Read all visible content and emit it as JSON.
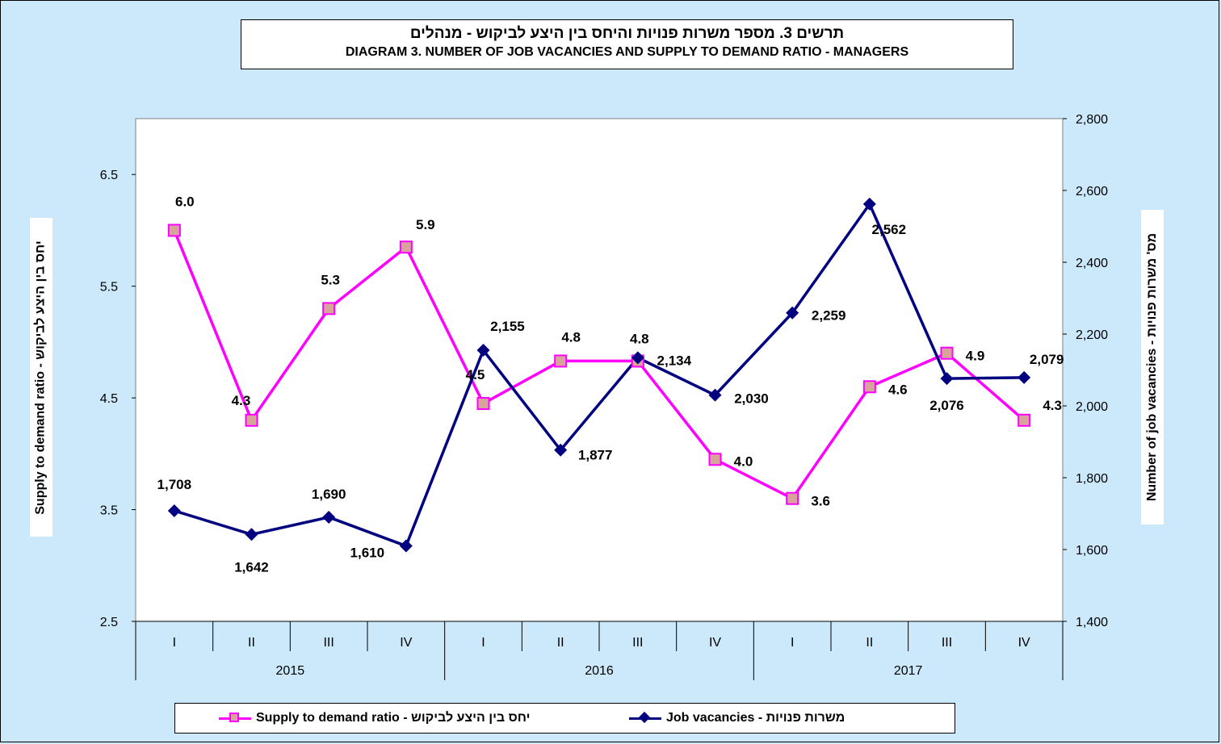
{
  "title": {
    "hebrew": "תרשים 3. מספר משרות פנויות והיחס בין היצע לביקוש - מנהלים",
    "english": "DIAGRAM 3. NUMBER OF JOB VACANCIES AND SUPPLY TO DEMAND RATIO - MANAGERS"
  },
  "colors": {
    "background": "#cce8fb",
    "supply": "#ff00ff",
    "supply_marker_fill": "#d8a39b",
    "jobs": "#000080"
  },
  "legend": {
    "supply": "Supply to demand ratio - יחס בין היצע לביקוש",
    "jobs": "Job vacancies - משרות פנויות"
  },
  "chart_data": {
    "type": "line",
    "categories": [
      "I",
      "II",
      "III",
      "IV",
      "I",
      "II",
      "III",
      "IV",
      "I",
      "II",
      "III",
      "IV"
    ],
    "groups": [
      {
        "label": "2015",
        "span": 4
      },
      {
        "label": "2016",
        "span": 4
      },
      {
        "label": "2017",
        "span": 4
      }
    ],
    "ylabel_left": "Supply to demand ratio - יחס בין היצע לביקוש",
    "ylabel_right": "Number of job vacancies - מס' משרות פנויות",
    "ylim_left": [
      2.5,
      7.0
    ],
    "yticks_left": [
      "2.5",
      "3.5",
      "4.5",
      "5.5",
      "6.5"
    ],
    "yticks_left_values": [
      2.5,
      3.5,
      4.5,
      5.5,
      6.5
    ],
    "ylim_right": [
      1400,
      2800
    ],
    "yticks_right": [
      "1,400",
      "1,600",
      "1,800",
      "2,000",
      "2,200",
      "2,400",
      "2,600",
      "2,800"
    ],
    "yticks_right_values": [
      1400,
      1600,
      1800,
      2000,
      2200,
      2400,
      2600,
      2800
    ],
    "legend_position": "bottom",
    "series": [
      {
        "name": "Supply to demand ratio - יחס בין היצע לביקוש",
        "axis": "left",
        "values": [
          6.0,
          4.3,
          5.3,
          5.85,
          4.45,
          4.83,
          4.83,
          3.95,
          3.6,
          4.6,
          4.9,
          4.3
        ],
        "labels": [
          "6.0",
          "4.3",
          "5.3",
          "5.9",
          "4.5",
          "4.8",
          "4.8",
          "4.0",
          "3.6",
          "4.6",
          "4.9",
          "4.3"
        ]
      },
      {
        "name": "Job vacancies - משרות פנויות",
        "axis": "right",
        "values": [
          1708,
          1642,
          1690,
          1610,
          2155,
          1877,
          2134,
          2030,
          2259,
          2562,
          2076,
          2079
        ],
        "labels": [
          "1,708",
          "1,642",
          "1,690",
          "1,610",
          "2,155",
          "1,877",
          "2,134",
          "2,030",
          "2,259",
          "2,562",
          "2,076",
          "2,079"
        ]
      }
    ]
  }
}
